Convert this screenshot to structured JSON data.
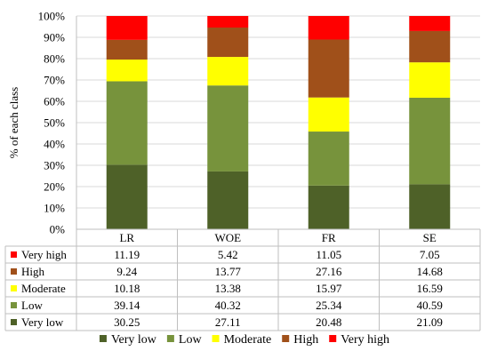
{
  "chart_data": {
    "type": "bar",
    "stacked": true,
    "percent_stacked": true,
    "categories": [
      "LR",
      "WOE",
      "FR",
      "SE"
    ],
    "ylabel": "% of each class",
    "ylim": [
      0,
      100
    ],
    "yticks": [
      "0%",
      "10%",
      "20%",
      "30%",
      "40%",
      "50%",
      "60%",
      "70%",
      "80%",
      "90%",
      "100%"
    ],
    "grid": true,
    "legend_position": "bottom",
    "data_table": true,
    "series": [
      {
        "name": "Very low",
        "color": "#4e6128",
        "values": [
          30.25,
          27.11,
          20.48,
          21.09
        ],
        "labels": [
          "30.25",
          "27.11",
          "20.48",
          "21.09"
        ]
      },
      {
        "name": "Low",
        "color": "#77933c",
        "values": [
          39.14,
          40.32,
          25.34,
          40.59
        ],
        "labels": [
          "39.14",
          "40.32",
          "25.34",
          "40.59"
        ]
      },
      {
        "name": "Moderate",
        "color": "#ffff00",
        "values": [
          10.18,
          13.38,
          15.97,
          16.59
        ],
        "labels": [
          "10.18",
          "13.38",
          "15.97",
          "16.59"
        ]
      },
      {
        "name": "High",
        "color": "#a0501a",
        "values": [
          9.24,
          13.77,
          27.16,
          14.68
        ],
        "labels": [
          "9.24",
          "13.77",
          "27.16",
          "14.68"
        ]
      },
      {
        "name": "Very high",
        "color": "#ff0000",
        "values": [
          11.19,
          5.42,
          11.05,
          7.05
        ],
        "labels": [
          "11.19",
          "5.42",
          "11.05",
          "7.05"
        ]
      }
    ]
  }
}
